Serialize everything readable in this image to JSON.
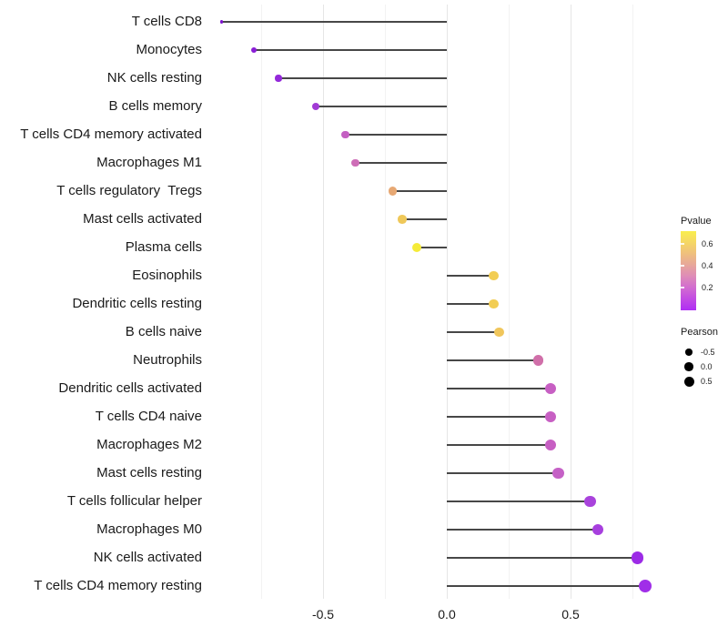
{
  "chart_data": {
    "type": "lollipop",
    "title": "",
    "xlabel": "",
    "ylabel": "",
    "x_axis": {
      "tick_values": [
        -0.5,
        0,
        0.5
      ],
      "tick_labels": [
        "-0.5",
        "0.0",
        "0.5"
      ],
      "minor_gridlines": [
        -0.75,
        -0.25,
        0.25,
        0.75
      ],
      "range": [
        -0.99,
        0.88
      ]
    },
    "points": [
      {
        "label": "T cells CD8",
        "pearson": -0.91,
        "pvalue_estimate": 0.02,
        "color": "#7D13CE",
        "radius": 1.8
      },
      {
        "label": "Monocytes",
        "pearson": -0.78,
        "pvalue_estimate": 0.05,
        "color": "#8A1DD6",
        "radius": 3.0
      },
      {
        "label": "NK cells resting",
        "pearson": -0.68,
        "pvalue_estimate": 0.07,
        "color": "#9429DA",
        "radius": 3.6
      },
      {
        "label": "B cells memory",
        "pearson": -0.53,
        "pvalue_estimate": 0.12,
        "color": "#A13BD5",
        "radius": 4.0
      },
      {
        "label": "T cells CD4 memory activated",
        "pearson": -0.41,
        "pvalue_estimate": 0.25,
        "color": "#C45FC2",
        "radius": 4.3
      },
      {
        "label": "Macrophages M1",
        "pearson": -0.37,
        "pvalue_estimate": 0.3,
        "color": "#CE6DB7",
        "radius": 4.3
      },
      {
        "label": "T cells regulatory  Tregs",
        "pearson": -0.22,
        "pvalue_estimate": 0.45,
        "color": "#E7A873",
        "radius": 4.6
      },
      {
        "label": "Mast cells activated",
        "pearson": -0.18,
        "pvalue_estimate": 0.55,
        "color": "#EFC859",
        "radius": 4.7
      },
      {
        "label": "Plasma cells",
        "pearson": -0.12,
        "pvalue_estimate": 0.7,
        "color": "#F5EB38",
        "radius": 5.0
      },
      {
        "label": "Eosinophils",
        "pearson": 0.19,
        "pvalue_estimate": 0.54,
        "color": "#F2CD53",
        "radius": 5.3
      },
      {
        "label": "Dendritic cells resting",
        "pearson": 0.19,
        "pvalue_estimate": 0.54,
        "color": "#F2CD53",
        "radius": 5.3
      },
      {
        "label": "B cells naive",
        "pearson": 0.21,
        "pvalue_estimate": 0.5,
        "color": "#F0C65B",
        "radius": 5.4
      },
      {
        "label": "Neutrophils",
        "pearson": 0.37,
        "pvalue_estimate": 0.32,
        "color": "#D06FA9",
        "radius": 5.7
      },
      {
        "label": "Dendritic cells activated",
        "pearson": 0.42,
        "pvalue_estimate": 0.24,
        "color": "#C75FC3",
        "radius": 6.0
      },
      {
        "label": "T cells CD4 naive",
        "pearson": 0.42,
        "pvalue_estimate": 0.24,
        "color": "#C75FC3",
        "radius": 6.0
      },
      {
        "label": "Macrophages M2",
        "pearson": 0.42,
        "pvalue_estimate": 0.24,
        "color": "#C75FC3",
        "radius": 6.0
      },
      {
        "label": "Mast cells resting",
        "pearson": 0.45,
        "pvalue_estimate": 0.22,
        "color": "#C561C6",
        "radius": 6.2
      },
      {
        "label": "T cells follicular helper",
        "pearson": 0.58,
        "pvalue_estimate": 0.12,
        "color": "#A943DC",
        "radius": 6.3
      },
      {
        "label": "Macrophages M0",
        "pearson": 0.61,
        "pvalue_estimate": 0.11,
        "color": "#A73FDE",
        "radius": 6.4
      },
      {
        "label": "NK cells activated",
        "pearson": 0.77,
        "pvalue_estimate": 0.04,
        "color": "#9C2BE6",
        "radius": 6.7
      },
      {
        "label": "T cells CD4 memory resting",
        "pearson": 0.8,
        "pvalue_estimate": 0.05,
        "color": "#A02EE8",
        "radius": 7.0
      }
    ],
    "legend": {
      "pvalue": {
        "title": "Pvalue",
        "tick_labels": [
          "0.6",
          "0.4",
          "0.2"
        ],
        "gradient_bottom_to_top": [
          "#AF2EF4",
          "#C24BE3",
          "#D26CD0",
          "#DE8BB8",
          "#E7A69B",
          "#EFBF7E",
          "#F5D765",
          "#F9EE4C"
        ]
      },
      "pearson": {
        "title": "Pearson",
        "items": [
          {
            "label": "-0.5",
            "radius": 3.7
          },
          {
            "label": "0.0",
            "radius": 4.7
          },
          {
            "label": "0.5",
            "radius": 5.5
          }
        ]
      }
    },
    "layout_hints": {
      "grid": "vertical-only",
      "legend_position": "right",
      "stem_origin": 0,
      "background": "#ffffff"
    }
  }
}
